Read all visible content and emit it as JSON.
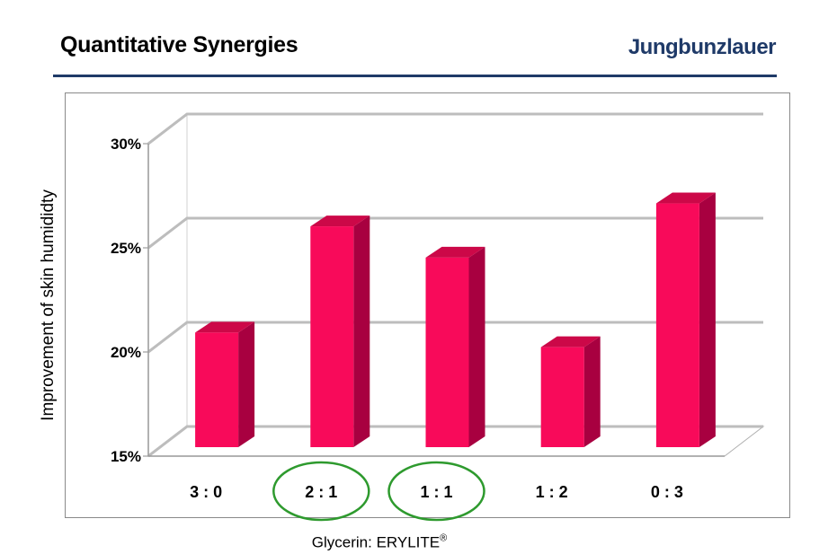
{
  "header": {
    "title": "Quantitative Synergies",
    "brand": "Jungbunzlauer"
  },
  "colors": {
    "bar_front": "#f80a5a",
    "bar_side": "#a80040",
    "bar_top": "#cc0848",
    "grid": "#bdbdbd",
    "rule": "#1f3a68",
    "circle": "#2e9a2e"
  },
  "chart_data": {
    "type": "bar",
    "style": "3d",
    "title": "",
    "categories": [
      "3 : 0",
      "2 : 1",
      "1 : 1",
      "1 : 2",
      "0 : 3"
    ],
    "values": [
      20.5,
      25.6,
      24.1,
      19.8,
      26.7
    ],
    "ylim": [
      15,
      30
    ],
    "yticks": [
      "15%",
      "20%",
      "25%",
      "30%"
    ],
    "ylabel": "Improvement of skin humididty",
    "xlabel_text": "Glycerin: ERYLITE",
    "xlabel_sup": "®",
    "highlighted_categories": [
      "2 : 1",
      "1 : 1"
    ],
    "grid": true
  }
}
